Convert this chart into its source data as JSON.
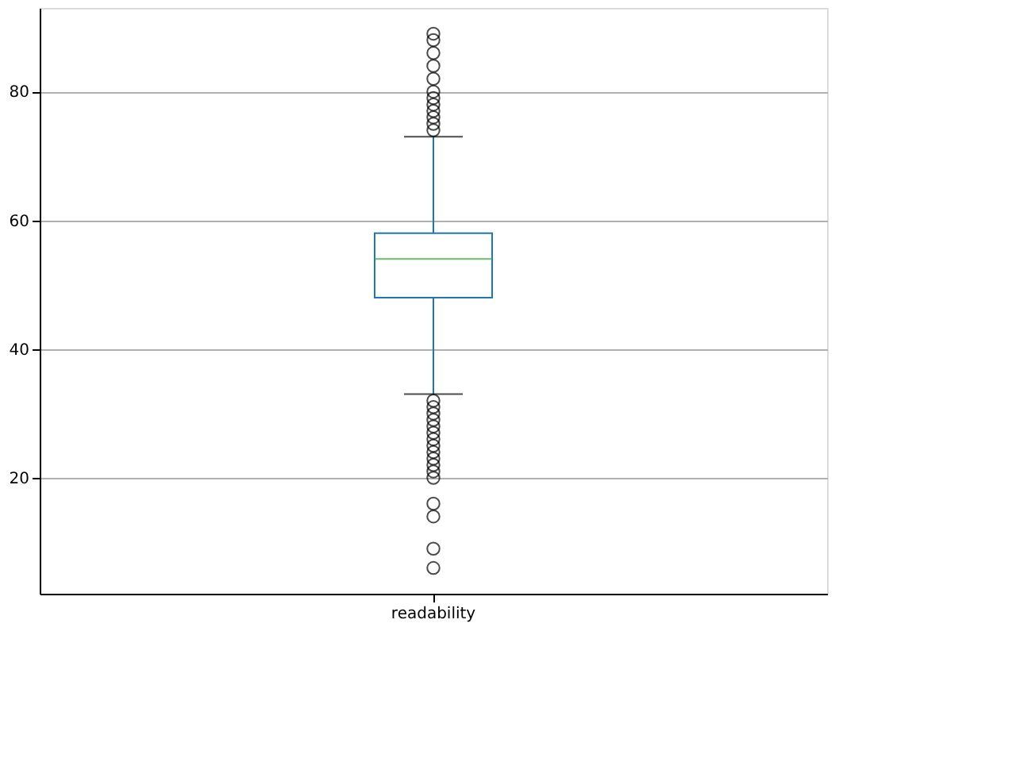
{
  "chart_data": {
    "type": "box",
    "categories": [
      "readability"
    ],
    "boxes": [
      {
        "low": 33,
        "q1": 48,
        "median": 54,
        "q3": 58,
        "high": 73,
        "outliers": [
          74,
          75,
          76,
          77,
          78,
          79,
          80,
          82,
          84,
          86,
          88,
          89,
          32,
          31,
          30,
          29,
          28,
          27,
          26,
          25,
          24,
          23,
          22,
          21,
          20,
          16,
          14,
          9,
          6
        ]
      }
    ],
    "ylim": [
      2,
      93
    ],
    "yticks": [
      20,
      40,
      60,
      80
    ],
    "grid": "y"
  }
}
